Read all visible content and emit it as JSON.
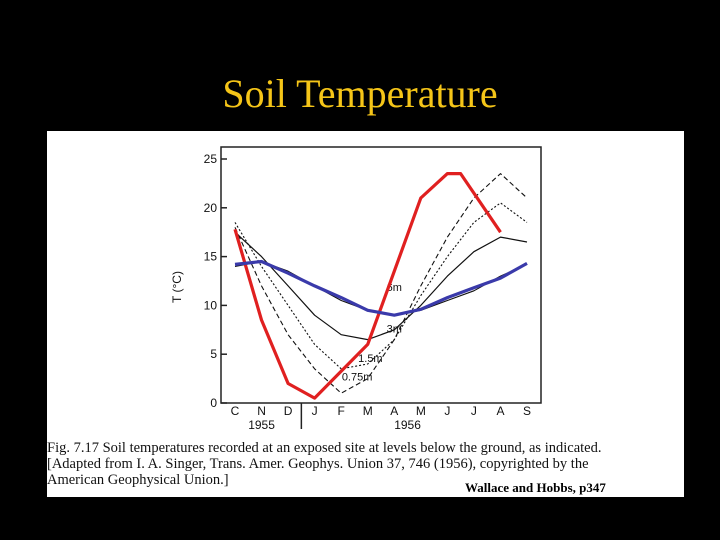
{
  "slide": {
    "title": "Soil Temperature"
  },
  "figure": {
    "caption_lines": [
      "Fig. 7.17   Soil temperatures recorded at an exposed site at levels below the ground, as indicated.",
      "[Adapted from I. A. Singer, Trans. Amer. Geophys. Union 37, 746 (1956), copyrighted by the",
      "American Geophysical Union.]"
    ],
    "credit": "Wallace and Hobbs, p347"
  },
  "chart_data": {
    "type": "line",
    "title": "",
    "xlabel": "",
    "ylabel": "T (°C)",
    "ylim": [
      0,
      25
    ],
    "yticks": [
      0,
      5,
      10,
      15,
      20,
      25
    ],
    "month_ticks": [
      "C",
      "N",
      "D",
      "J",
      "F",
      "M",
      "A",
      "M",
      "J",
      "J",
      "A",
      "S"
    ],
    "year_labels": [
      "1955",
      "1956"
    ],
    "x": [
      0,
      1,
      2,
      3,
      4,
      5,
      6,
      7,
      8,
      9,
      10,
      11
    ],
    "series": [
      {
        "name": "0.75m",
        "values": [
          18,
          12,
          7,
          3.5,
          1,
          2.5,
          6.5,
          12,
          17,
          21,
          23.5,
          21
        ]
      },
      {
        "name": "1.5m",
        "values": [
          18.5,
          14,
          10,
          6,
          3.5,
          4,
          6.5,
          11,
          15,
          18.5,
          20.5,
          18.5
        ]
      },
      {
        "name": "3m",
        "values": [
          17.5,
          15,
          12,
          9,
          7,
          6.5,
          7.5,
          10,
          13,
          15.5,
          17,
          16.5
        ]
      },
      {
        "name": "6m",
        "values": [
          14,
          14.5,
          13.5,
          12,
          10.5,
          9.5,
          9,
          9.5,
          10.5,
          11.5,
          13,
          14.2
        ]
      },
      {
        "name": "",
        "values": [
          17.8,
          8.5,
          2,
          0.5,
          6,
          13.5,
          21,
          23.5,
          23.5,
          17.5
        ],
        "x": [
          0,
          1,
          2,
          3,
          5,
          6,
          7,
          8,
          8.5,
          10
        ],
        "color": "#e02020"
      },
      {
        "name": "",
        "values": [
          14.2,
          14.5,
          13.3,
          12,
          10.8,
          9.5,
          9,
          9.6,
          10.8,
          11.8,
          12.8,
          14.3
        ],
        "color": "#3a3aaa"
      }
    ],
    "colors": {
      "title": "#f5c518",
      "trace_red": "#e02020",
      "trace_blue": "#3a3aaa"
    }
  }
}
